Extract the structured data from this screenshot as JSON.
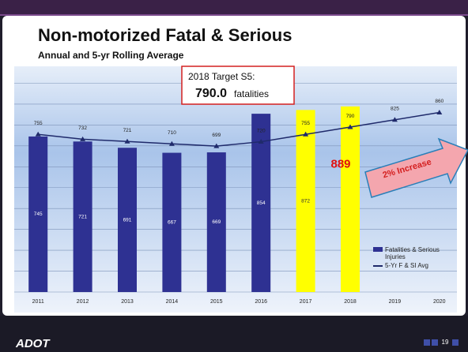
{
  "chart_data": {
    "type": "bar_line",
    "title": "Non-motorized Fatal & Serious",
    "subtitle": "Annual and 5-yr Rolling Average",
    "categories": [
      "2011",
      "2012",
      "2013",
      "2014",
      "2015",
      "2016",
      "2017",
      "2018",
      "2019",
      "2020"
    ],
    "series": [
      {
        "name": "Fatalities & Serious Injuries",
        "type": "bar",
        "color": "#2e3192",
        "highlight_color": "#ffff00",
        "highlight_categories": [
          "2017",
          "2018"
        ],
        "values": [
          745,
          721,
          691,
          667,
          669,
          854,
          872,
          889,
          null,
          null
        ]
      },
      {
        "name": "5-Yr F & SI Avg",
        "type": "line",
        "color": "#1f2a6b",
        "values": [
          755,
          732,
          721,
          710,
          699,
          720,
          755,
          790,
          825,
          860
        ]
      }
    ],
    "emphasized_value": {
      "category": "2018",
      "color": "#e01010"
    },
    "annotations": {
      "target_label": "2018 Target S5:",
      "target_value": "790.0",
      "target_unit": "fatalities",
      "arrow": "2% Increase"
    },
    "ylim": [
      0,
      1000
    ],
    "yticks": [
      0,
      100,
      200,
      300,
      400,
      500,
      600,
      700,
      800,
      900,
      1000
    ],
    "grid": true,
    "legend": "lower right"
  },
  "footer": {
    "logo": "ADOT",
    "page": "19"
  }
}
